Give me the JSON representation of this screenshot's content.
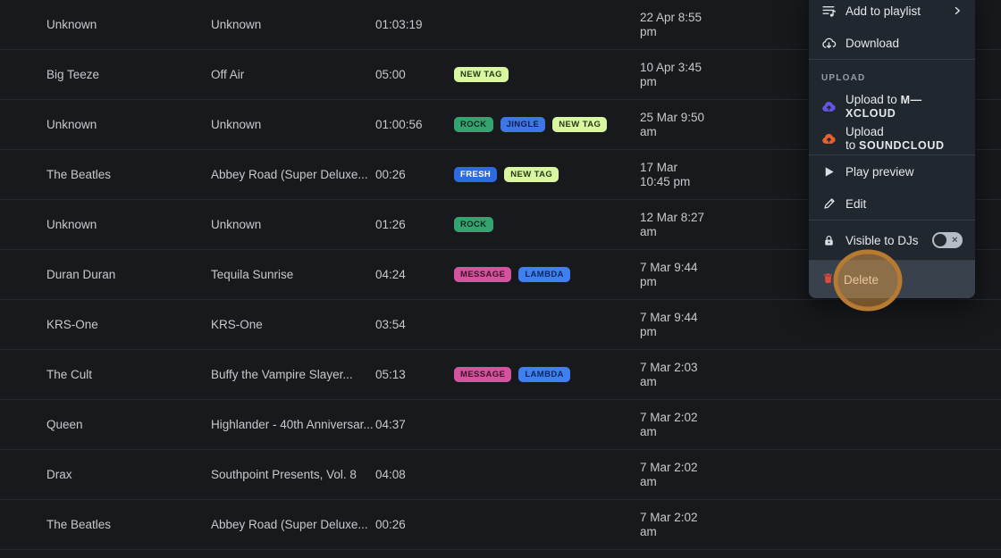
{
  "table": {
    "rows": [
      {
        "artist": "Unknown",
        "title": "Unknown",
        "duration": "01:03:19",
        "tags": [],
        "date_line1": "22 Apr 8:55",
        "date_line2": "pm"
      },
      {
        "artist": "Big Teeze",
        "title": "Off Air",
        "duration": "05:00",
        "tags": [
          "NEW TAG"
        ],
        "date_line1": "10 Apr 3:45",
        "date_line2": "pm"
      },
      {
        "artist": "Unknown",
        "title": "Unknown",
        "duration": "01:00:56",
        "tags": [
          "ROCK",
          "JINGLE",
          "NEW TAG"
        ],
        "date_line1": "25 Mar 9:50",
        "date_line2": "am"
      },
      {
        "artist": "The Beatles",
        "title": "Abbey Road (Super Deluxe...",
        "duration": "00:26",
        "tags": [
          "FRESH",
          "NEW TAG"
        ],
        "date_line1": "17 Mar",
        "date_line2": "10:45 pm"
      },
      {
        "artist": "Unknown",
        "title": "Unknown",
        "duration": "01:26",
        "tags": [
          "ROCK"
        ],
        "date_line1": "12 Mar 8:27",
        "date_line2": "am"
      },
      {
        "artist": "Duran Duran",
        "title": "Tequila Sunrise",
        "duration": "04:24",
        "tags": [
          "MESSAGE",
          "LAMBDA"
        ],
        "date_line1": "7 Mar 9:44",
        "date_line2": "pm"
      },
      {
        "artist": "KRS-One",
        "title": "KRS-One",
        "duration": "03:54",
        "tags": [],
        "date_line1": "7 Mar 9:44",
        "date_line2": "pm"
      },
      {
        "artist": "The Cult",
        "title": "Buffy the Vampire Slayer...",
        "duration": "05:13",
        "tags": [
          "MESSAGE",
          "LAMBDA"
        ],
        "date_line1": "7 Mar 2:03",
        "date_line2": "am"
      },
      {
        "artist": "Queen",
        "title": "Highlander - 40th Anniversar...",
        "duration": "04:37",
        "tags": [],
        "date_line1": "7 Mar 2:02",
        "date_line2": "am"
      },
      {
        "artist": "Drax",
        "title": "Southpoint Presents, Vol. 8",
        "duration": "04:08",
        "tags": [],
        "date_line1": "7 Mar 2:02",
        "date_line2": "am"
      },
      {
        "artist": "The Beatles",
        "title": "Abbey Road (Super Deluxe...",
        "duration": "00:26",
        "tags": [],
        "date_line1": "7 Mar 2:02",
        "date_line2": "am"
      }
    ],
    "tag_colors": {
      "NEW TAG": {
        "bg": "#d9f7a0",
        "fg": "#263a0e"
      },
      "ROCK": {
        "bg": "#33a46f",
        "fg": "#0c2b1c"
      },
      "JINGLE": {
        "bg": "#3e76ea",
        "fg": "#0b1f4e"
      },
      "FRESH": {
        "bg": "#2e6ae0",
        "fg": "#ffffff"
      },
      "MESSAGE": {
        "bg": "#d3539c",
        "fg": "#43102c"
      },
      "LAMBDA": {
        "bg": "#3f7ff0",
        "fg": "#0a2a5e"
      }
    }
  },
  "context_menu": {
    "add_to_playlist": "Add to playlist",
    "download": "Download",
    "upload_section": "UPLOAD",
    "upload_prefix": "Upload to",
    "mixcloud_brand": "M—XCLOUD",
    "soundcloud_brand": "SOUNDCLOUD",
    "play_preview": "Play preview",
    "edit": "Edit",
    "visible_to_djs": "Visible to DJs",
    "delete": "Delete",
    "visible_to_djs_toggle_state": "off"
  },
  "colors": {
    "mixcloud": "#5f55e7",
    "soundcloud": "#e8622d",
    "delete_red": "#e2483b",
    "annotation_fill": "#e09a45",
    "annotation_ring": "#b77a31",
    "menu_bg": "#21272f",
    "table_bg": "#17191d"
  }
}
